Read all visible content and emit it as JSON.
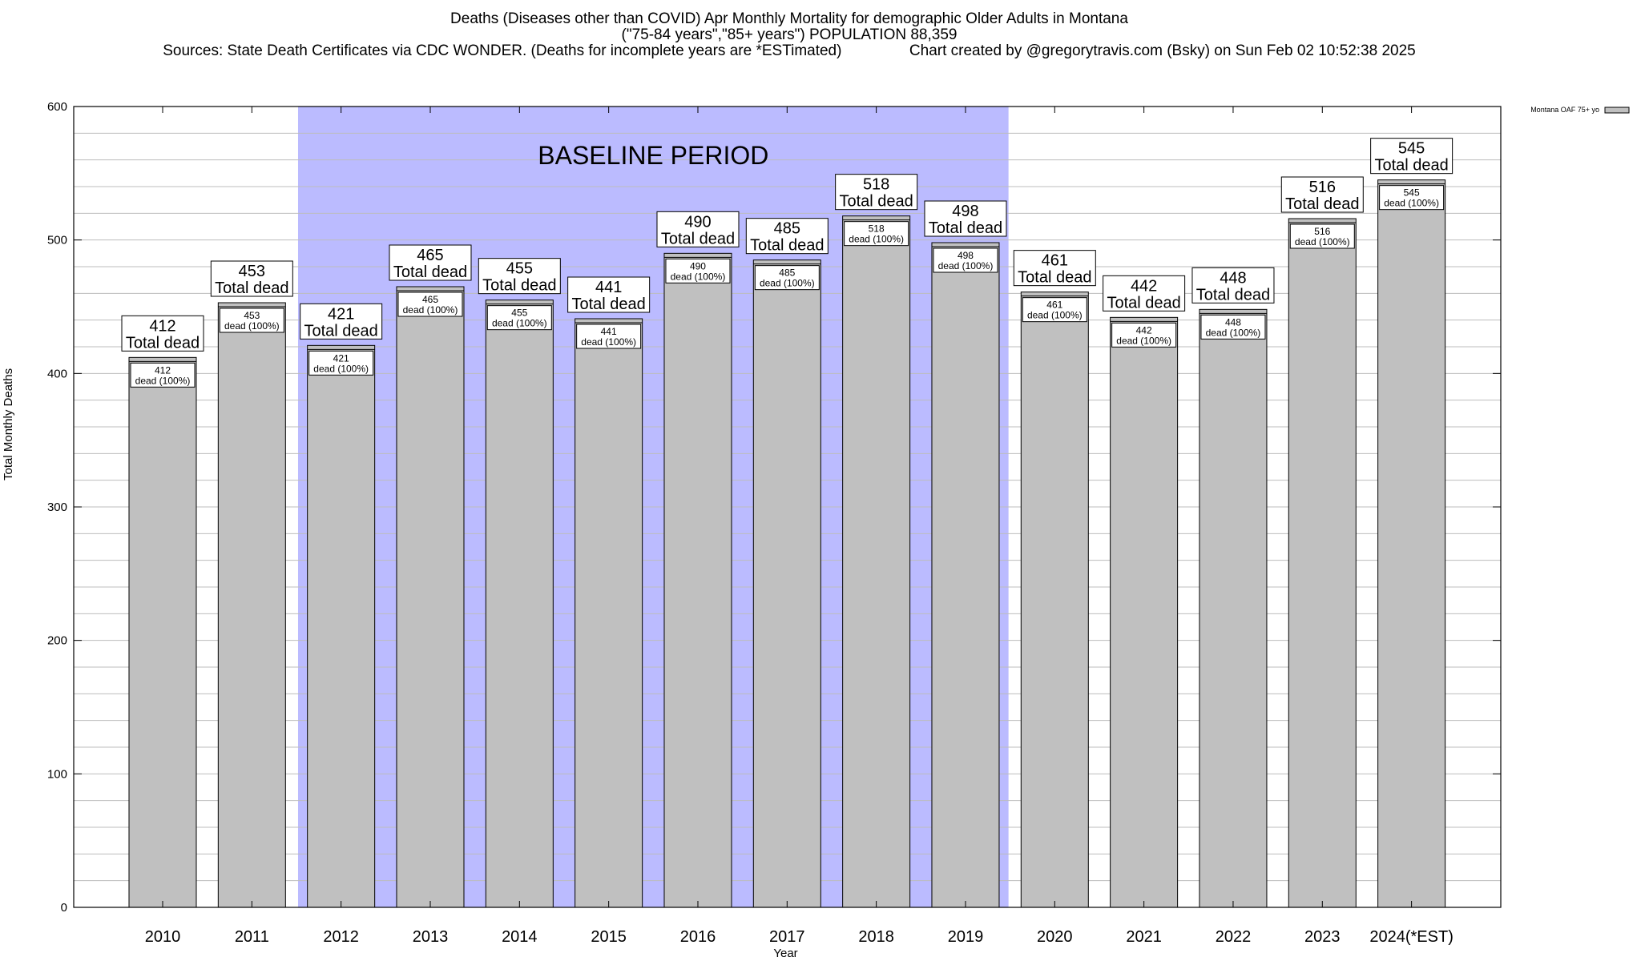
{
  "title": {
    "line1": "Deaths (Diseases other than COVID) Apr Monthly Mortality for demographic Older Adults in Montana",
    "line2": "(\"75-84 years\",\"85+ years\") POPULATION 88,359",
    "line3": "Sources: State Death Certificates via CDC WONDER. (Deaths for incomplete years are *ESTimated)                Chart created by @gregorytravis.com (Bsky) on Sun Feb 02 10:52:38 2025"
  },
  "chart_data": {
    "type": "bar",
    "categories": [
      "2010",
      "2011",
      "2012",
      "2013",
      "2014",
      "2015",
      "2016",
      "2017",
      "2018",
      "2019",
      "2020",
      "2021",
      "2022",
      "2023",
      "2024(*EST)"
    ],
    "series": [
      {
        "name": "Montana OAF 75+ yo",
        "values": [
          412,
          453,
          421,
          465,
          455,
          441,
          490,
          485,
          518,
          498,
          461,
          442,
          448,
          516,
          545
        ]
      }
    ],
    "xlabel": "Year",
    "ylabel": "Total Monthly Deaths",
    "ylim": [
      0,
      600
    ],
    "yticks": [
      0,
      100,
      200,
      300,
      400,
      500,
      600
    ],
    "grid": true,
    "legend": "top-right",
    "baseline": {
      "label": "BASELINE PERIOD",
      "from": "2012",
      "to": "2019",
      "color": "#bbbbff"
    },
    "bar_label_top": "Total dead",
    "bar_label_inner": "dead (100%)",
    "colors": {
      "bar": "#c0c0c0",
      "baseline": "#bbbbff"
    }
  }
}
